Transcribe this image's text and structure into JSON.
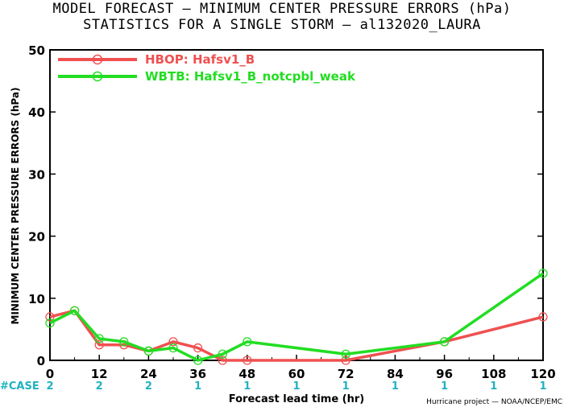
{
  "chart_data": {
    "type": "line",
    "title": "MODEL FORECAST — MINIMUM CENTER PRESSURE ERRORS (hPa)",
    "subtitle": "STATISTICS FOR A SINGLE STORM — al132020_LAURA",
    "xlabel": "Forecast lead time (hr)",
    "ylabel": "MINIMUM CENTER PRESSURE ERRORS (hPa)",
    "xlim": [
      0,
      120
    ],
    "ylim": [
      0,
      50
    ],
    "x_ticks": [
      0,
      12,
      24,
      36,
      48,
      60,
      72,
      84,
      96,
      108,
      120
    ],
    "y_ticks": [
      0,
      10,
      20,
      30,
      40,
      50
    ],
    "grid": false,
    "legend_position": "top-left",
    "case_label": "#CASE",
    "case_counts": [
      2,
      2,
      2,
      1,
      1,
      1,
      1,
      1,
      1,
      1,
      1
    ],
    "credit": "Hurricane project — NOAA/NCEP/EMC",
    "series": [
      {
        "name": "HBOP: Hafsv1_B",
        "color": "#f05050",
        "x": [
          0,
          6,
          12,
          18,
          24,
          30,
          36,
          42,
          48,
          72,
          96,
          120
        ],
        "y": [
          7,
          8,
          2.5,
          2.5,
          1.5,
          3,
          2,
          0,
          0,
          0,
          3,
          7
        ]
      },
      {
        "name": "WBTB: Hafsv1_B_notcpbl_weak",
        "color": "#22dd22",
        "x": [
          0,
          6,
          12,
          18,
          24,
          30,
          36,
          42,
          48,
          72,
          96,
          120
        ],
        "y": [
          6,
          8,
          3.5,
          3,
          1.5,
          2,
          0,
          1,
          3,
          1,
          3,
          14
        ]
      }
    ]
  }
}
